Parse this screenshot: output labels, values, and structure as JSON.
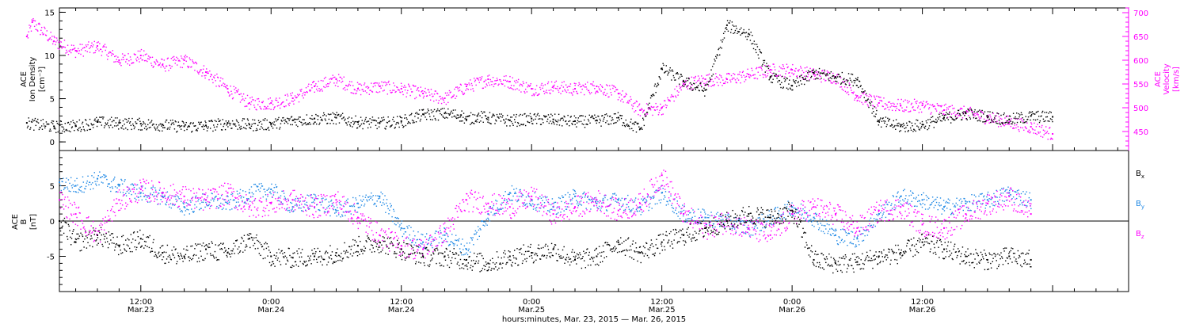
{
  "colors": {
    "density": "#000000",
    "velocity": "#ff00ff",
    "bx": "#000000",
    "by": "#1e88e5",
    "bz": "#ff00ff",
    "axis": "#000000"
  },
  "chart_data": [
    {
      "type": "scatter",
      "panel": "top",
      "ylabel": [
        "ACE",
        "Ion Density",
        "[cm⁻³]"
      ],
      "y2label": [
        "ACE",
        "Velocity",
        "[km/s]"
      ],
      "ylim": [
        -1,
        15.5
      ],
      "y2lim": [
        410,
        710
      ],
      "yticks": [
        "0",
        "5",
        "10",
        "15"
      ],
      "y2ticks": [
        "450",
        "500",
        "550",
        "600",
        "650",
        "700"
      ],
      "series": [
        {
          "key": "density",
          "axis": "left",
          "x": [
            1.5,
            4,
            6,
            8,
            10,
            12,
            14,
            16,
            18,
            20,
            22,
            24,
            26,
            28,
            30,
            32,
            34,
            36,
            38,
            40,
            41.5,
            42,
            43,
            44,
            46,
            48,
            50,
            52,
            54,
            56,
            58,
            60,
            62,
            64,
            66,
            68,
            70,
            72,
            74,
            76,
            78,
            80,
            82,
            84,
            86,
            88,
            90,
            92,
            94,
            96
          ],
          "y": [
            2.2,
            1.8,
            1.9,
            2.3,
            2.2,
            2.1,
            2.0,
            1.8,
            1.9,
            2.2,
            2.0,
            2.1,
            2.5,
            2.7,
            2.8,
            2.3,
            2.2,
            2.4,
            3.2,
            3.3,
            3.1,
            2.6,
            3.0,
            2.8,
            2.5,
            2.7,
            2.6,
            2.4,
            2.5,
            2.8,
            1.5,
            8.5,
            7.0,
            6.0,
            13.5,
            12.5,
            7.5,
            6.5,
            8.0,
            7.5,
            7.2,
            2.4,
            1.8,
            2.0,
            2.8,
            3.3,
            3.0,
            2.6,
            3.0,
            2.9
          ]
        },
        {
          "key": "velocity",
          "axis": "right",
          "x": [
            1.5,
            2,
            4,
            6,
            8,
            10,
            12,
            14,
            16,
            18,
            20,
            22,
            24,
            26,
            28,
            30,
            32,
            34,
            36,
            38,
            40,
            42,
            44,
            46,
            48,
            50,
            52,
            54,
            56,
            58,
            60,
            62,
            64,
            66,
            68,
            70,
            72,
            74,
            76,
            78,
            80,
            82,
            84,
            86,
            88,
            90,
            92,
            94,
            96
          ],
          "y": [
            650,
            680,
            640,
            620,
            630,
            600,
            610,
            590,
            600,
            575,
            540,
            510,
            510,
            520,
            545,
            560,
            540,
            545,
            540,
            530,
            520,
            545,
            560,
            555,
            540,
            545,
            540,
            545,
            530,
            495,
            500,
            550,
            560,
            560,
            570,
            580,
            580,
            570,
            565,
            525,
            510,
            505,
            505,
            495,
            490,
            480,
            470,
            460,
            445
          ]
        }
      ]
    },
    {
      "type": "scatter",
      "panel": "bottom",
      "xlabel": "hours:minutes, Mar. 23, 2015 — Mar. 26, 2015",
      "ylabel": [
        "ACE",
        "B",
        "[nT]"
      ],
      "ylim": [
        -10,
        10
      ],
      "yticks": [
        "-5",
        "0",
        "5"
      ],
      "legend": [
        "B",
        "B",
        "B"
      ],
      "legend_sub": [
        "x",
        "y",
        "z"
      ],
      "x_ticks": [
        {
          "time": "12:00",
          "date": "Mar.23"
        },
        {
          "time": "0:00",
          "date": "Mar.24"
        },
        {
          "time": "12:00",
          "date": "Mar.24"
        },
        {
          "time": "0:00",
          "date": "Mar.25"
        },
        {
          "time": "12:00",
          "date": "Mar.25"
        },
        {
          "time": "0:00",
          "date": "Mar.26"
        },
        {
          "time": "12:00",
          "date": "Mar.26"
        }
      ],
      "x_tick_hours": [
        12,
        24,
        36,
        48,
        60,
        72,
        84
      ],
      "xlim": [
        4.5,
        103
      ],
      "series": [
        {
          "key": "bx",
          "x": [
            4.5,
            6,
            8,
            10,
            12,
            14,
            16,
            18,
            20,
            22,
            24,
            26,
            28,
            30,
            32,
            34,
            36,
            38,
            40,
            42,
            44,
            46,
            48,
            50,
            52,
            54,
            56,
            58,
            60,
            62,
            64,
            66,
            68,
            70,
            72,
            74,
            76,
            78,
            80,
            82,
            84,
            86,
            88,
            90,
            92,
            94
          ],
          "y": [
            0,
            -3.0,
            -2.0,
            -3.5,
            -2.5,
            -4.5,
            -5.0,
            -4.0,
            -4.5,
            -2.5,
            -5.0,
            -5.2,
            -5.0,
            -4.5,
            -3.5,
            -3.0,
            -4.0,
            -5.0,
            -5.0,
            -5.5,
            -6.0,
            -5.0,
            -4.5,
            -4.0,
            -5.5,
            -5.0,
            -3.0,
            -4.5,
            -3.0,
            -2.0,
            -1.0,
            0,
            1.0,
            0.5,
            1.5,
            -5.5,
            -6.0,
            -5.8,
            -5.0,
            -4.5,
            -3.0,
            -4.0,
            -5.0,
            -5.5,
            -5.0,
            -5.5
          ]
        },
        {
          "key": "by",
          "x": [
            4.5,
            6,
            8,
            10,
            12,
            14,
            16,
            18,
            20,
            22,
            24,
            26,
            28,
            30,
            32,
            34,
            36,
            38,
            40,
            42,
            44,
            46,
            48,
            50,
            52,
            54,
            56,
            58,
            60,
            62,
            64,
            66,
            68,
            70,
            72,
            74,
            76,
            78,
            80,
            82,
            84,
            86,
            88,
            90,
            92,
            94
          ],
          "y": [
            5.5,
            5.0,
            6.0,
            5.0,
            4.0,
            3.5,
            2.0,
            3.0,
            2.5,
            4.0,
            4.5,
            2.0,
            3.0,
            1.5,
            2.5,
            3.5,
            -1.0,
            -3.0,
            -2.0,
            -4.0,
            1.0,
            4.0,
            3.0,
            2.0,
            3.5,
            2.5,
            3.0,
            2.0,
            4.0,
            1.0,
            0.5,
            0,
            -1.0,
            0.5,
            2.0,
            0.5,
            -2.0,
            -2.5,
            1.0,
            3.5,
            3.0,
            2.0,
            2.5,
            3.0,
            4.0,
            3.0
          ]
        },
        {
          "key": "bz",
          "x": [
            4.5,
            6,
            8,
            10,
            12,
            14,
            16,
            18,
            20,
            22,
            24,
            26,
            28,
            30,
            32,
            34,
            36,
            38,
            40,
            42,
            44,
            46,
            48,
            50,
            52,
            54,
            56,
            58,
            60,
            62,
            64,
            66,
            68,
            70,
            72,
            74,
            76,
            78,
            80,
            82,
            84,
            86,
            88,
            90,
            92,
            94
          ],
          "y": [
            3.0,
            1.0,
            -2.0,
            3.0,
            4.5,
            4.0,
            3.5,
            3.0,
            4.0,
            2.0,
            2.5,
            3.0,
            2.0,
            3.0,
            0.5,
            -2.0,
            -3.5,
            -4.0,
            -1.5,
            3.0,
            2.5,
            2.0,
            3.5,
            1.0,
            2.0,
            3.0,
            1.5,
            2.5,
            6.5,
            1.0,
            -1.0,
            0,
            -1.0,
            -2.0,
            1.0,
            2.0,
            1.0,
            -1.0,
            1.5,
            2.0,
            -0.5,
            -1.0,
            1.0,
            2.5,
            3.5,
            1.0
          ]
        }
      ]
    }
  ]
}
